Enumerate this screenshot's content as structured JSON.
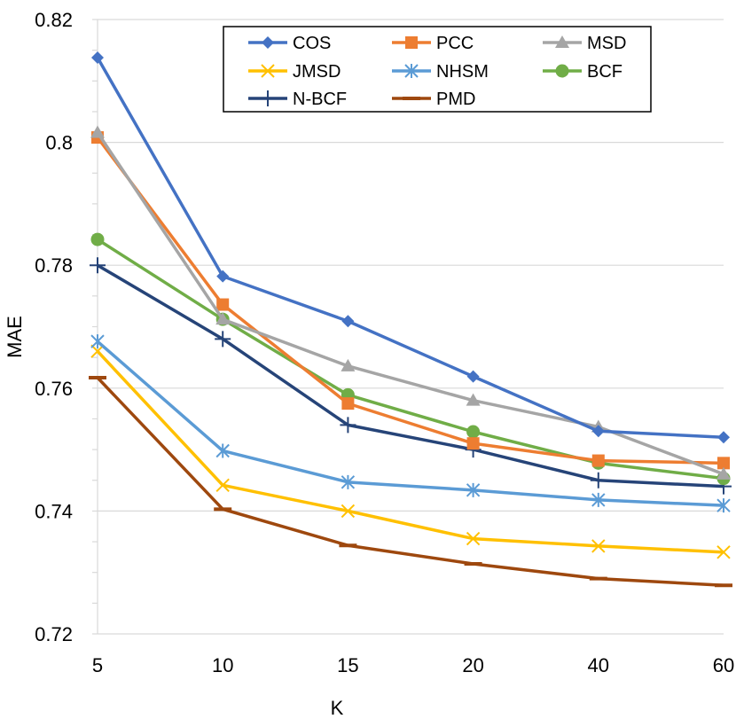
{
  "chart_data": {
    "type": "line",
    "title": "",
    "xlabel": "K",
    "ylabel": "MAE",
    "categories": [
      "5",
      "10",
      "15",
      "20",
      "40",
      "60"
    ],
    "ylim": [
      0.72,
      0.82
    ],
    "yticks": [
      "0.72",
      "0.74",
      "0.76",
      "0.78",
      "0.8",
      "0.82"
    ],
    "ytick_values": [
      0.72,
      0.74,
      0.76,
      0.78,
      0.8,
      0.82
    ],
    "grid": "horizontal",
    "legend_position": "top-right",
    "series": [
      {
        "name": "COS",
        "color": "#4472C4",
        "marker": "diamond",
        "values": [
          0.8138,
          0.7782,
          0.7709,
          0.7619,
          0.753,
          0.752
        ]
      },
      {
        "name": "PCC",
        "color": "#ED7D31",
        "marker": "square",
        "values": [
          0.8008,
          0.7736,
          0.7575,
          0.751,
          0.7482,
          0.7478
        ]
      },
      {
        "name": "MSD",
        "color": "#A5A5A5",
        "marker": "triangle",
        "values": [
          0.8016,
          0.7712,
          0.7636,
          0.758,
          0.7537,
          0.746
        ]
      },
      {
        "name": "JMSD",
        "color": "#FFC000",
        "marker": "x",
        "values": [
          0.766,
          0.7442,
          0.74,
          0.7355,
          0.7343,
          0.7333
        ]
      },
      {
        "name": "NHSM",
        "color": "#5B9BD5",
        "marker": "star",
        "values": [
          0.7676,
          0.7498,
          0.7447,
          0.7434,
          0.7418,
          0.7409
        ]
      },
      {
        "name": "BCF",
        "color": "#70AD47",
        "marker": "circle",
        "values": [
          0.7842,
          0.7712,
          0.7589,
          0.7529,
          0.7478,
          0.7453
        ]
      },
      {
        "name": "N-BCF",
        "color": "#264478",
        "marker": "plus",
        "values": [
          0.78,
          0.768,
          0.754,
          0.75,
          0.745,
          0.744
        ]
      },
      {
        "name": "PMD",
        "color": "#9E480E",
        "marker": "dash",
        "values": [
          0.7617,
          0.7403,
          0.7344,
          0.7314,
          0.729,
          0.7279
        ]
      }
    ]
  }
}
